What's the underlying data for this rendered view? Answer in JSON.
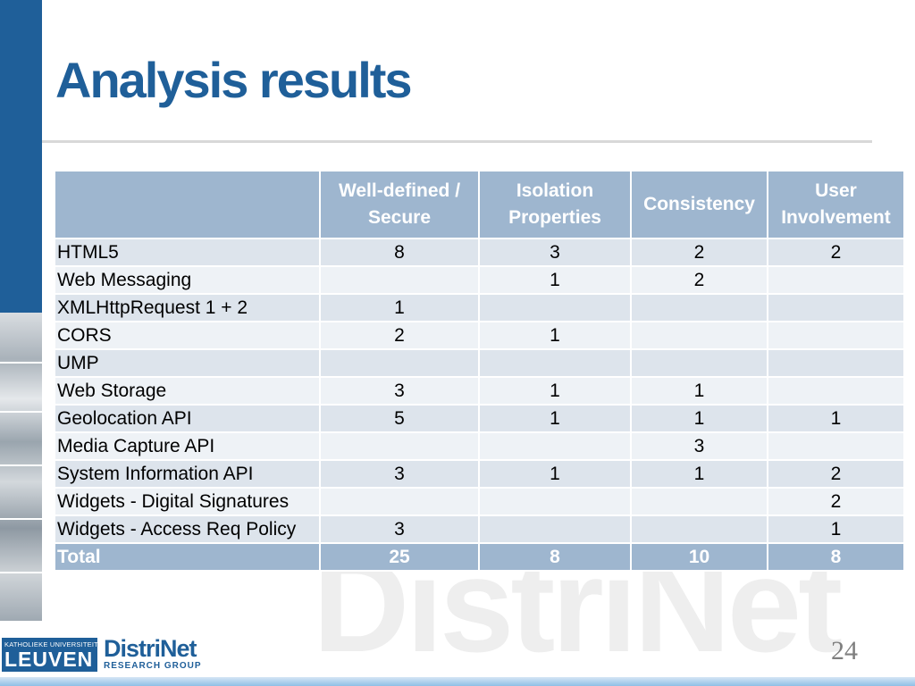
{
  "slide": {
    "title": "Analysis results",
    "page_number": "24",
    "watermark": "DistriNet"
  },
  "table": {
    "headers": [
      "",
      "Well-defined / Secure",
      "Isolation Properties",
      "Consistency",
      "User Involvement"
    ],
    "rows": [
      {
        "label": "HTML5",
        "values": [
          "8",
          "3",
          "2",
          "2"
        ]
      },
      {
        "label": "Web Messaging",
        "values": [
          "",
          "1",
          "2",
          ""
        ]
      },
      {
        "label": "XMLHttpRequest 1 + 2",
        "values": [
          "1",
          "",
          "",
          ""
        ]
      },
      {
        "label": "CORS",
        "values": [
          "2",
          "1",
          "",
          ""
        ]
      },
      {
        "label": "UMP",
        "values": [
          "",
          "",
          "",
          ""
        ]
      },
      {
        "label": "Web Storage",
        "values": [
          "3",
          "1",
          "1",
          ""
        ]
      },
      {
        "label": "Geolocation API",
        "values": [
          "5",
          "1",
          "1",
          "1"
        ]
      },
      {
        "label": "Media Capture API",
        "values": [
          "",
          "",
          "3",
          ""
        ]
      },
      {
        "label": "System Information API",
        "values": [
          "3",
          "1",
          "1",
          "2"
        ]
      },
      {
        "label": "Widgets - Digital Signatures",
        "values": [
          "",
          "",
          "",
          "2"
        ]
      },
      {
        "label": "Widgets - Access Req Policy",
        "values": [
          "3",
          "",
          "",
          "1"
        ]
      }
    ],
    "total": {
      "label": "Total",
      "values": [
        "25",
        "8",
        "10",
        "8"
      ]
    }
  },
  "logos": {
    "kul_top": "KATHOLIEKE UNIVERSITEIT",
    "kul_main": "LEUVEN",
    "distrinet_main": "DistriNet",
    "distrinet_sub": "RESEARCH GROUP"
  },
  "colors": {
    "accent": "#1f5f99",
    "header_fill": "#9eb6cf",
    "row_fill_a": "#dde4ec",
    "row_fill_b": "#eef2f6"
  }
}
